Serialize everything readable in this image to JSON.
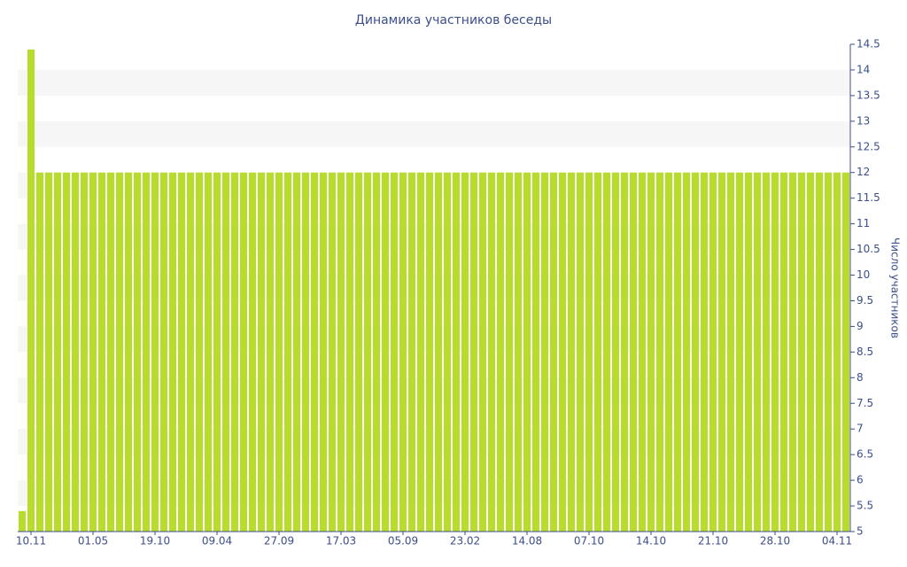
{
  "chart_data": {
    "type": "bar",
    "title": "Динамика участников беседы",
    "y_label": "Число участников",
    "categories": [
      null,
      "10.11",
      null,
      null,
      null,
      null,
      null,
      null,
      "01.05",
      null,
      null,
      null,
      null,
      null,
      null,
      "19.10",
      null,
      null,
      null,
      null,
      null,
      null,
      "09.04",
      null,
      null,
      null,
      null,
      null,
      null,
      "27.09",
      null,
      null,
      null,
      null,
      null,
      null,
      "17.03",
      null,
      null,
      null,
      null,
      null,
      null,
      "05.09",
      null,
      null,
      null,
      null,
      null,
      null,
      "23.02",
      null,
      null,
      null,
      null,
      null,
      null,
      "14.08",
      null,
      null,
      null,
      null,
      null,
      null,
      "07.10",
      null,
      null,
      null,
      null,
      null,
      null,
      "14.10",
      null,
      null,
      null,
      null,
      null,
      null,
      "21.10",
      null,
      null,
      null,
      null,
      null,
      null,
      "28.10",
      null,
      null,
      null,
      null,
      null,
      null,
      "04.11",
      null
    ],
    "values": [
      5.4,
      14.4,
      12,
      12,
      12,
      12,
      12,
      12,
      12,
      12,
      12,
      12,
      12,
      12,
      12,
      12,
      12,
      12,
      12,
      12,
      12,
      12,
      12,
      12,
      12,
      12,
      12,
      12,
      12,
      12,
      12,
      12,
      12,
      12,
      12,
      12,
      12,
      12,
      12,
      12,
      12,
      12,
      12,
      12,
      12,
      12,
      12,
      12,
      12,
      12,
      12,
      12,
      12,
      12,
      12,
      12,
      12,
      12,
      12,
      12,
      12,
      12,
      12,
      12,
      12,
      12,
      12,
      12,
      12,
      12,
      12,
      12,
      12,
      12,
      12,
      12,
      12,
      12,
      12,
      12,
      12,
      12,
      12,
      12,
      12,
      12,
      12,
      12,
      12,
      12,
      12,
      12,
      12,
      12
    ],
    "color": "#b8dc2c",
    "ylim": [
      5,
      14.5
    ],
    "yticks": [
      5,
      5.5,
      6,
      6.5,
      7,
      7.5,
      8,
      8.5,
      9,
      9.5,
      10,
      10.5,
      11,
      11.5,
      12,
      12.5,
      13,
      13.5,
      14,
      14.5
    ],
    "y_axis_side": "right",
    "grid": "bands"
  }
}
